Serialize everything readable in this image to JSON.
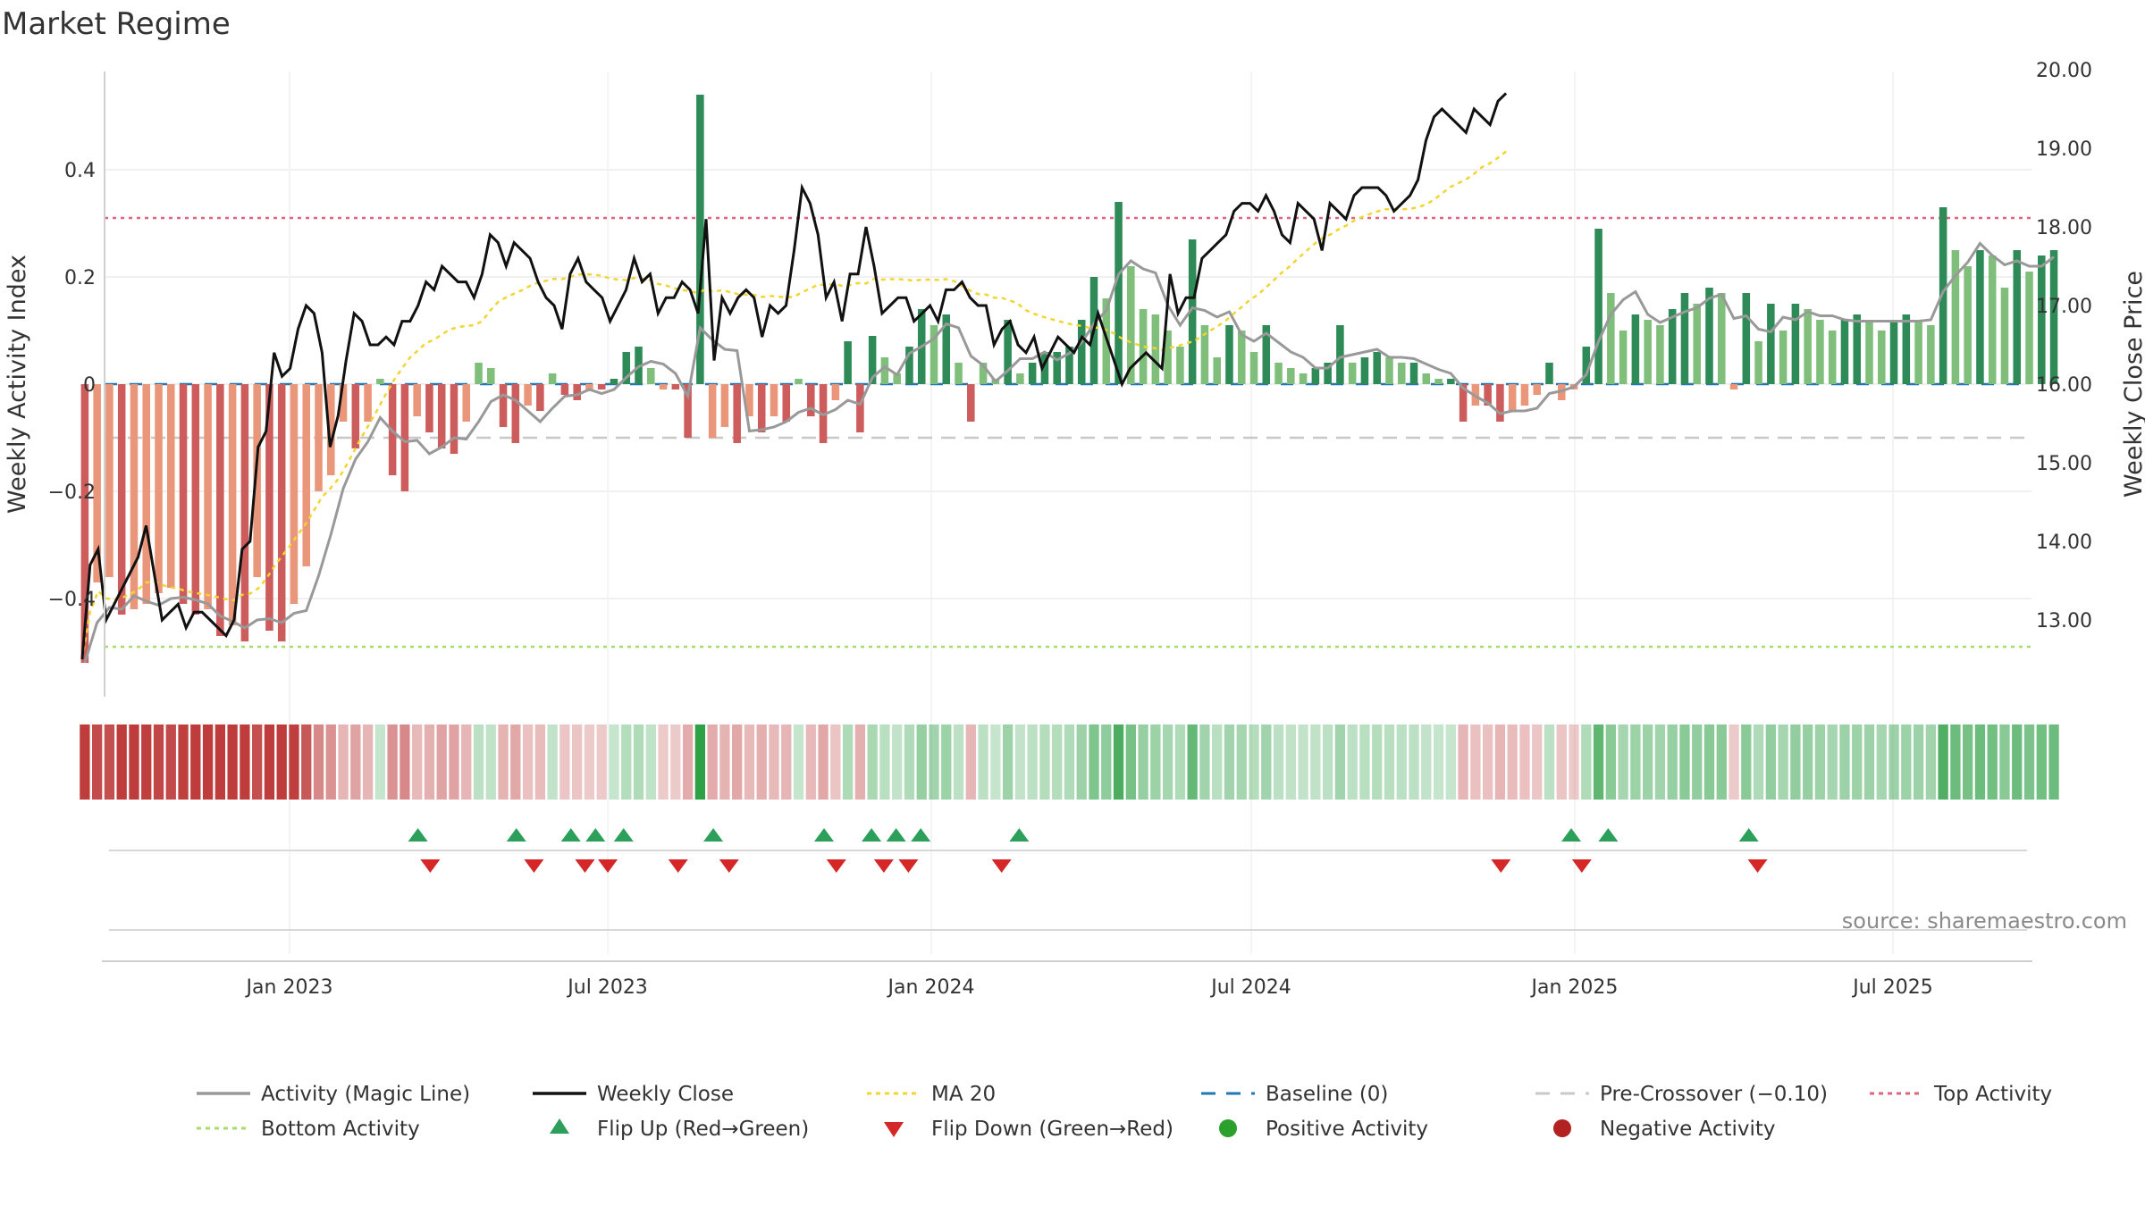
{
  "chart_data": {
    "type": "bar",
    "title": "Market Regime",
    "ylabel_left": "Weekly Activity Index",
    "ylabel_right": "Weekly Close Price",
    "source": "source: sharemaestro.com",
    "x_start": "2022-09-05",
    "week_days": 7,
    "y_left_ticks": [
      0.4,
      0.2,
      0,
      -0.2,
      -0.4
    ],
    "y_left_tick_labels": [
      "0.4",
      "0.2",
      "0",
      "−0.2",
      "−0.4"
    ],
    "ylim_left": [
      -0.58,
      0.58
    ],
    "y_right_ticks": [
      "20.00",
      "19.00",
      "18.00",
      "17.00",
      "16.00",
      "15.00",
      "14.00",
      "13.00"
    ],
    "ylim_right": [
      12.4,
      20.5
    ],
    "x_ticks": [
      {
        "label": "Jan 2023",
        "date": "2023-01-01"
      },
      {
        "label": "Jul 2023",
        "date": "2023-07-01"
      },
      {
        "label": "Jan 2024",
        "date": "2024-01-01"
      },
      {
        "label": "Jul 2024",
        "date": "2024-07-01"
      },
      {
        "label": "Jan 2025",
        "date": "2025-01-01"
      },
      {
        "label": "Jul 2025",
        "date": "2025-07-01"
      }
    ],
    "reference_lines": {
      "baseline": 0,
      "pre_crossover": -0.1,
      "top_activity": 0.31,
      "bottom_activity": -0.49
    },
    "activity": [
      -0.52,
      -0.37,
      -0.36,
      -0.43,
      -0.42,
      -0.41,
      -0.39,
      -0.38,
      -0.41,
      -0.43,
      -0.42,
      -0.47,
      -0.45,
      -0.48,
      -0.36,
      -0.46,
      -0.48,
      -0.41,
      -0.34,
      -0.2,
      -0.17,
      -0.07,
      -0.12,
      -0.07,
      0.01,
      -0.17,
      -0.2,
      -0.06,
      -0.09,
      -0.12,
      -0.13,
      -0.07,
      0.04,
      0.03,
      -0.08,
      -0.11,
      -0.04,
      -0.05,
      0.02,
      -0.02,
      -0.03,
      -0.01,
      -0.01,
      0.01,
      0.06,
      0.07,
      0.03,
      -0.01,
      -0.01,
      -0.1,
      0.54,
      -0.1,
      -0.08,
      -0.11,
      -0.06,
      -0.09,
      -0.06,
      -0.07,
      0.01,
      -0.06,
      -0.11,
      -0.03,
      0.08,
      -0.09,
      0.09,
      0.05,
      0.02,
      0.07,
      0.14,
      0.11,
      0.13,
      0.04,
      -0.07,
      0.04,
      0.01,
      0.12,
      0.02,
      0.04,
      0.06,
      0.06,
      0.07,
      0.12,
      0.2,
      0.16,
      0.34,
      0.22,
      0.14,
      0.13,
      0.1,
      0.07,
      0.27,
      0.11,
      0.05,
      0.11,
      0.1,
      0.06,
      0.11,
      0.04,
      0.03,
      0.02,
      0.03,
      0.04,
      0.11,
      0.04,
      0.05,
      0.06,
      0.05,
      0.04,
      0.04,
      0.02,
      0.01,
      0.01,
      -0.07,
      -0.04,
      -0.04,
      -0.07,
      -0.05,
      -0.04,
      -0.02,
      0.04,
      -0.03,
      -0.01,
      0.07,
      0.29,
      0.17,
      0.1,
      0.13,
      0.12,
      0.11,
      0.14,
      0.17,
      0.15,
      0.18,
      0.17,
      -0.01,
      0.17,
      0.08,
      0.15,
      0.1,
      0.15,
      0.14,
      0.12,
      0.1,
      0.12,
      0.13,
      0.12,
      0.1,
      0.12,
      0.13,
      0.12,
      0.11,
      0.33,
      0.25,
      0.22,
      0.25,
      0.24,
      0.18,
      0.25,
      0.21,
      0.24,
      0.25
    ],
    "close": [
      12.5,
      13.7,
      13.9,
      13.0,
      13.2,
      13.4,
      13.6,
      13.8,
      14.2,
      13.6,
      13.0,
      13.1,
      13.2,
      12.9,
      13.1,
      13.1,
      13.0,
      12.9,
      12.8,
      13.0,
      13.9,
      14.0,
      15.2,
      15.4,
      16.4,
      16.1,
      16.2,
      16.7,
      17.0,
      16.9,
      16.4,
      15.2,
      15.6,
      16.3,
      16.9,
      16.8,
      16.5,
      16.5,
      16.6,
      16.5,
      16.8,
      16.8,
      17.0,
      17.3,
      17.2,
      17.5,
      17.4,
      17.3,
      17.3,
      17.1,
      17.4,
      17.9,
      17.8,
      17.5,
      17.8,
      17.7,
      17.6,
      17.3,
      17.1,
      17.0,
      16.7,
      17.4,
      17.6,
      17.3,
      17.2,
      17.1,
      16.8,
      17.0,
      17.2,
      17.6,
      17.3,
      17.4,
      16.9,
      17.1,
      17.1,
      17.3,
      17.2,
      16.9,
      18.1,
      16.3,
      17.1,
      16.9,
      17.1,
      17.2,
      17.1,
      16.6,
      17.0,
      16.9,
      17.0,
      17.7,
      18.5,
      18.3,
      17.9,
      17.1,
      17.3,
      16.8,
      17.4,
      17.4,
      18.0,
      17.5,
      16.9,
      17.0,
      17.1,
      17.1,
      16.8,
      16.9,
      17.0,
      16.8,
      17.2,
      17.2,
      17.3,
      17.1,
      17.0,
      17.0,
      16.5,
      16.7,
      16.8,
      16.5,
      16.4,
      16.6,
      16.2,
      16.4,
      16.6,
      16.5,
      16.4,
      16.6,
      16.5,
      16.9,
      16.6,
      16.3,
      16.0,
      16.2,
      16.3,
      16.4,
      16.3,
      16.2,
      17.4,
      16.9,
      17.1,
      17.1,
      17.6,
      17.7,
      17.8,
      17.9,
      18.2,
      18.3,
      18.3,
      18.2,
      18.4,
      18.2,
      17.9,
      17.8,
      18.3,
      18.2,
      18.1,
      17.7,
      18.3,
      18.2,
      18.1,
      18.4,
      18.5,
      18.5,
      18.5,
      18.4,
      18.2,
      18.3,
      18.4,
      18.6,
      19.1,
      19.4,
      19.5,
      19.4,
      19.3,
      19.2,
      19.5,
      19.4,
      19.3,
      19.6,
      19.7
    ],
    "close_x_start": "2022-09-05",
    "close_week_days": 4.55,
    "flip_up_dates": [
      "2023-03-15",
      "2023-05-10",
      "2023-06-10",
      "2023-06-24",
      "2023-07-10",
      "2023-08-30",
      "2023-11-01",
      "2023-11-28",
      "2023-12-12",
      "2023-12-26",
      "2024-02-20",
      "2024-12-30",
      "2025-01-20",
      "2025-04-10"
    ],
    "flip_down_dates": [
      "2023-03-22",
      "2023-05-20",
      "2023-06-18",
      "2023-07-01",
      "2023-08-10",
      "2023-09-08",
      "2023-11-08",
      "2023-12-05",
      "2023-12-19",
      "2024-02-10",
      "2024-11-20",
      "2025-01-05",
      "2025-04-15"
    ],
    "legend": [
      {
        "label": "Activity (Magic Line)",
        "kind": "line",
        "color": "#999999"
      },
      {
        "label": "Weekly Close",
        "kind": "line",
        "color": "#111111"
      },
      {
        "label": "MA 20",
        "kind": "dotted",
        "color": "#f2d531"
      },
      {
        "label": "Baseline (0)",
        "kind": "dashed",
        "color": "#1f77b4"
      },
      {
        "label": "Pre-Crossover (−0.10)",
        "kind": "dashed",
        "color": "#c8c8c8"
      },
      {
        "label": "Top Activity",
        "kind": "dotted",
        "color": "#e06480"
      },
      {
        "label": "Bottom Activity",
        "kind": "dotted",
        "color": "#a7dd6a"
      },
      {
        "label": "Flip Up (Red→Green)",
        "kind": "tri-up",
        "color": "#2ca05a"
      },
      {
        "label": "Flip Down (Green→Red)",
        "kind": "tri-down",
        "color": "#d62728"
      },
      {
        "label": "Positive Activity",
        "kind": "dot",
        "color": "#2ca02c"
      },
      {
        "label": "Negative Activity",
        "kind": "dot",
        "color": "#b22222"
      }
    ],
    "colors": {
      "pos_strong": "#2e8b57",
      "pos_light": "#7fbf7b",
      "neg_strong": "#cd5c5c",
      "neg_light": "#e9967a",
      "magic": "#999999",
      "close": "#111111",
      "ma": "#f2d531",
      "baseline": "#1f77b4",
      "pre": "#c8c8c8",
      "top": "#e06480",
      "bottom": "#a7dd6a",
      "up": "#2ca05a",
      "down": "#d62728"
    }
  }
}
